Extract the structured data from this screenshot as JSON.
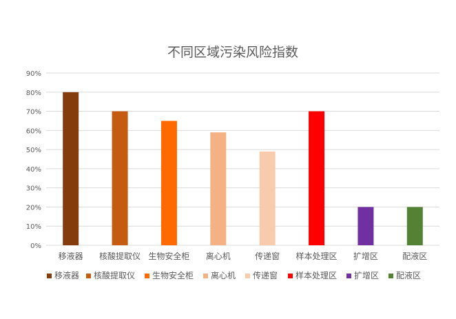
{
  "chart_data": {
    "type": "bar",
    "title": "不同区域污染风险指数",
    "xlabel": "",
    "ylabel": "",
    "categories": [
      "移液器",
      "核酸提取仪",
      "生物安全柜",
      "离心机",
      "传递窗",
      "样本处理区",
      "扩增区",
      "配液区"
    ],
    "series": [
      {
        "values": [
          80,
          70,
          65,
          59,
          49,
          70,
          20,
          20
        ]
      }
    ],
    "bar_colors": [
      "#843C0C",
      "#C55A11",
      "#FF6A00",
      "#F4B183",
      "#F8CBAD",
      "#FF0000",
      "#7030A0",
      "#548235"
    ],
    "ylim": [
      0,
      90
    ],
    "yticks": [
      0,
      10,
      20,
      30,
      40,
      50,
      60,
      70,
      80,
      90
    ],
    "ytick_labels": [
      "0%",
      "10%",
      "20%",
      "30%",
      "40%",
      "50%",
      "60%",
      "70%",
      "80%",
      "90%"
    ],
    "grid": true,
    "legend_position": "bottom",
    "legend": [
      "移液器",
      "核酸提取仪",
      "生物安全柜",
      "离心机",
      "传递窗",
      "样本处理区",
      "扩增区",
      "配液区"
    ]
  }
}
